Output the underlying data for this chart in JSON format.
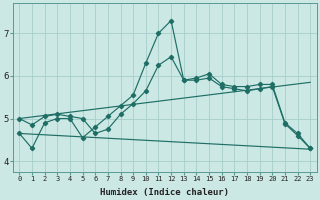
{
  "xlabel": "Humidex (Indice chaleur)",
  "xlim": [
    -0.5,
    23.5
  ],
  "ylim": [
    3.75,
    7.7
  ],
  "yticks": [
    4,
    5,
    6,
    7
  ],
  "xticks": [
    0,
    1,
    2,
    3,
    4,
    5,
    6,
    7,
    8,
    9,
    10,
    11,
    12,
    13,
    14,
    15,
    16,
    17,
    18,
    19,
    20,
    21,
    22,
    23
  ],
  "background_color": "#cce8e5",
  "grid_color": "#a8ceca",
  "line_color": "#1e6e65",
  "lines": [
    {
      "x": [
        0,
        1,
        2,
        3,
        4,
        5,
        6,
        7,
        8,
        9,
        10,
        11,
        12,
        13,
        14,
        15,
        16,
        17,
        18,
        19,
        20,
        21,
        22,
        23
      ],
      "y": [
        4.65,
        4.3,
        4.9,
        5.0,
        5.0,
        4.55,
        4.8,
        5.05,
        5.3,
        5.55,
        6.3,
        7.0,
        7.3,
        5.9,
        5.95,
        6.05,
        5.8,
        5.75,
        5.75,
        5.8,
        5.8,
        4.9,
        4.65,
        4.3
      ]
    },
    {
      "x": [
        0,
        1,
        2,
        3,
        4,
        5,
        6,
        7,
        8,
        9,
        10,
        11,
        12,
        13,
        14,
        15,
        16,
        17,
        18,
        19,
        20,
        21,
        22,
        23
      ],
      "y": [
        5.0,
        4.85,
        5.05,
        5.1,
        5.05,
        5.0,
        4.65,
        4.75,
        5.1,
        5.35,
        5.65,
        6.25,
        6.45,
        5.9,
        5.9,
        5.95,
        5.75,
        5.7,
        5.65,
        5.7,
        5.75,
        4.88,
        4.6,
        4.3
      ]
    },
    {
      "x": [
        0,
        23
      ],
      "y": [
        5.0,
        5.85
      ]
    },
    {
      "x": [
        0,
        23
      ],
      "y": [
        4.65,
        4.28
      ]
    }
  ]
}
